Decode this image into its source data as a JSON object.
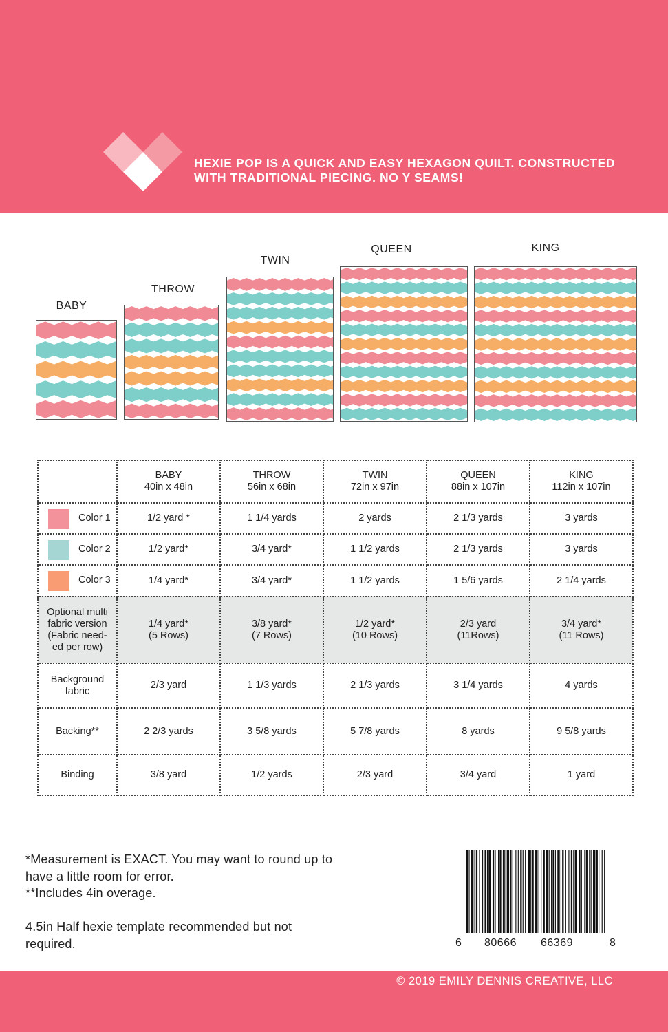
{
  "header": {
    "tagline_line1": "HEXIE POP IS A QUICK AND EASY HEXAGON QUILT.  CONSTRUCTED",
    "tagline_line2": "WITH TRADITIONAL PIECING. NO Y SEAMS!"
  },
  "colors": {
    "brand": "#f06177",
    "pink": "#f08b96",
    "teal": "#7ecfc9",
    "orange": "#f6ae66",
    "swatch_color1": "#f3929a",
    "swatch_color2": "#a6d6d4",
    "swatch_color3": "#f99b73",
    "logo_light": "#f7a4ad",
    "logo_white": "#ffffff"
  },
  "quilts": {
    "baby": {
      "label": "BABY",
      "rows": [
        "pink",
        "teal",
        "orange",
        "teal",
        "pink"
      ]
    },
    "throw": {
      "label": "THROW",
      "rows": [
        "pink",
        "teal",
        "teal",
        "orange",
        "orange",
        "teal",
        "pink"
      ]
    },
    "twin": {
      "label": "TWIN",
      "rows": [
        "pink",
        "teal",
        "teal",
        "orange",
        "pink",
        "teal",
        "teal",
        "orange",
        "teal",
        "pink"
      ]
    },
    "queen": {
      "label": "QUEEN",
      "rows": [
        "pink",
        "teal",
        "orange",
        "pink",
        "teal",
        "orange",
        "pink",
        "teal",
        "orange",
        "pink",
        "teal"
      ]
    },
    "king": {
      "label": "KING",
      "rows": [
        "pink",
        "teal",
        "orange",
        "pink",
        "teal",
        "orange",
        "pink",
        "teal",
        "orange",
        "pink",
        "teal"
      ]
    }
  },
  "table": {
    "headers": [
      {
        "name": "BABY",
        "size": "40in x 48in"
      },
      {
        "name": "THROW",
        "size": "56in x 68in"
      },
      {
        "name": "TWIN",
        "size": "72in x 97in"
      },
      {
        "name": "QUEEN",
        "size": "88in x 107in"
      },
      {
        "name": "KING",
        "size": "112in x 107in"
      }
    ],
    "color1": {
      "label": "Color 1",
      "values": [
        "1/2 yard *",
        "1 1/4 yards",
        "2 yards",
        "2 1/3 yards",
        "3 yards"
      ]
    },
    "color2": {
      "label": "Color 2",
      "values": [
        "1/2 yard*",
        "3/4 yard*",
        "1 1/2 yards",
        "2 1/3 yards",
        "3 yards"
      ]
    },
    "color3": {
      "label": "Color 3",
      "values": [
        "1/4 yard*",
        "3/4 yard*",
        "1 1/2 yards",
        "1 5/6 yards",
        "2 1/4 yards"
      ]
    },
    "multi": {
      "label_lines": [
        "Optional multi",
        "fabric version",
        "(Fabric need-",
        "ed per row)"
      ],
      "values": [
        [
          "1/4 yard*",
          "(5 Rows)"
        ],
        [
          "3/8 yard*",
          "(7 Rows)"
        ],
        [
          "1/2 yard*",
          "(10 Rows)"
        ],
        [
          "2/3 yard",
          "(11Rows)"
        ],
        [
          "3/4 yard*",
          "(11 Rows)"
        ]
      ]
    },
    "background": {
      "label_lines": [
        "Background",
        "fabric"
      ],
      "values": [
        "2/3 yard",
        "1 1/3 yards",
        "2 1/3 yards",
        "3 1/4 yards",
        "4 yards"
      ]
    },
    "backing": {
      "label": "Backing**",
      "values": [
        "2 2/3 yards",
        "3 5/8 yards",
        "5 7/8 yards",
        "8 yards",
        "9 5/8 yards"
      ]
    },
    "binding": {
      "label": "Binding",
      "values": [
        "3/8 yard",
        "1/2 yards",
        "2/3 yard",
        "3/4 yard",
        "1 yard"
      ]
    }
  },
  "notes": {
    "line1": "*Measurement is EXACT.  You may want to round up to",
    "line2": "have a little room for error.",
    "line3": "**Includes 4in overage.",
    "line4": "4.5in Half hexie template recommended but not",
    "line5": "required."
  },
  "barcode": {
    "digit_left": "6",
    "group1": "80666",
    "group2": "66369",
    "digit_right": "8"
  },
  "footer": {
    "copyright": "© 2019 EMILY DENNIS CREATIVE, LLC"
  }
}
